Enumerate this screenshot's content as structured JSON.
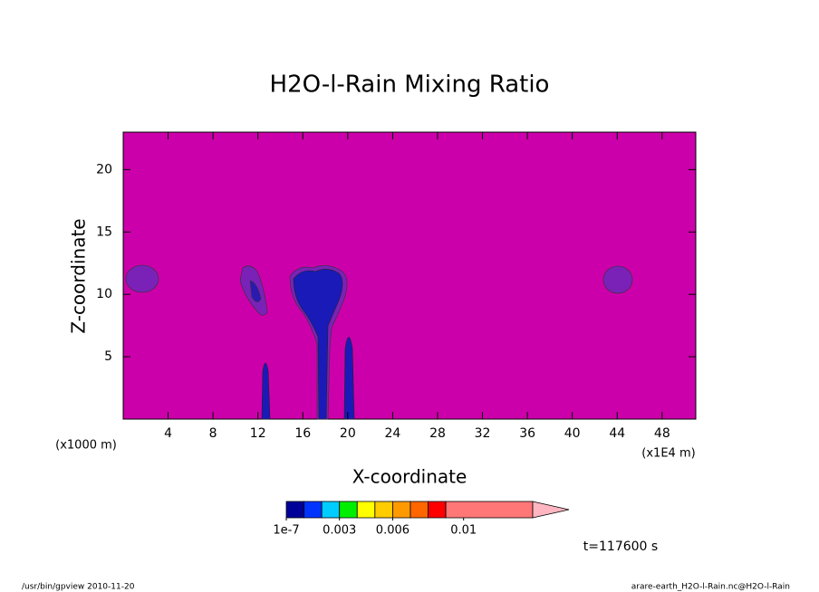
{
  "chart_data": {
    "type": "contour",
    "title": "H2O-l-Rain Mixing Ratio",
    "xlabel": "X-coordinate",
    "ylabel": "Z-coordinate",
    "x_unit": "(x1E4 m)",
    "y_unit": "(x1000 m)",
    "xlim": [
      0,
      51
    ],
    "ylim": [
      0,
      23
    ],
    "xticks": [
      4,
      8,
      12,
      16,
      20,
      24,
      28,
      32,
      36,
      40,
      44,
      48
    ],
    "yticks": [
      5,
      10,
      15,
      20
    ],
    "background_color": "#cc00aa",
    "colorbar": {
      "levels": [
        1e-07,
        0.001,
        0.002,
        0.003,
        0.004,
        0.005,
        0.006,
        0.007,
        0.008,
        0.009
      ],
      "colors": [
        "#000099",
        "#0033ff",
        "#00ccff",
        "#00ee00",
        "#ffff00",
        "#ffcc00",
        "#ff9900",
        "#ff6600",
        "#ff0000",
        "#ff7777"
      ],
      "extend_color": "#ffb6c1",
      "clim": [
        1e-07,
        0.0139
      ],
      "ticks": [
        {
          "value": 1e-07,
          "label": "1e-7"
        },
        0.003,
        0.006,
        0.01
      ]
    },
    "time_label": "t=117600 s",
    "footer_left": "/usr/bin/gpview  2010-11-20",
    "footer_right": "arare-earth_H2O-l-Rain.nc@H2O-l-Rain"
  }
}
